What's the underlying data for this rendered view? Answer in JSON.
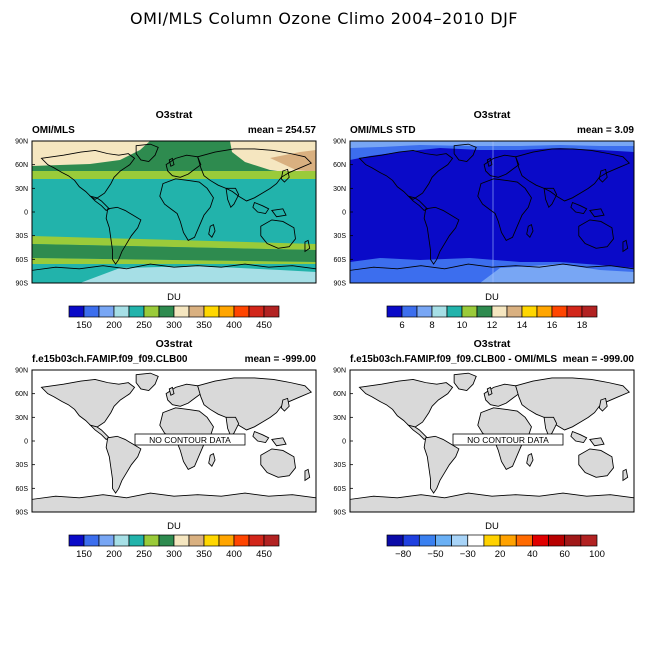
{
  "figure": {
    "title": "OMI/MLS Column Ozone Climo 2004–2010 DJF"
  },
  "land_color": "#d9d9d9",
  "lat_labels": [
    "90N",
    "60N",
    "30N",
    "0",
    "30S",
    "60S",
    "90S"
  ],
  "panels": [
    {
      "id": "p1",
      "center_title": "O3strat",
      "left_title": "OMI/MLS",
      "right_title": "mean = 254.57",
      "colorbar_title": "DU",
      "colorbar_colors": [
        "#0a0ac8",
        "#3c6eee",
        "#78a6f4",
        "#a6dfe6",
        "#22b3ab",
        "#9acb3a",
        "#2e8b4f",
        "#f5e6c0",
        "#d9b080",
        "#ffd700",
        "#ffa500",
        "#ff4500",
        "#d2261a",
        "#b22222"
      ],
      "colorbar_labels": [
        "150",
        "200",
        "250",
        "300",
        "350",
        "400",
        "450"
      ],
      "no_data": ""
    },
    {
      "id": "p2",
      "center_title": "O3strat",
      "left_title": "OMI/MLS STD",
      "right_title": "mean =   3.09",
      "colorbar_title": "DU",
      "colorbar_colors": [
        "#0a0ac8",
        "#3c6eee",
        "#78a6f4",
        "#a6dfe6",
        "#22b3ab",
        "#9acb3a",
        "#2e8b4f",
        "#f5e6c0",
        "#d9b080",
        "#ffd700",
        "#ffa500",
        "#ff4500",
        "#d2261a",
        "#b22222"
      ],
      "colorbar_labels": [
        "6",
        "8",
        "10",
        "12",
        "14",
        "16",
        "18"
      ],
      "no_data": ""
    },
    {
      "id": "p3",
      "center_title": "O3strat",
      "left_title": "f.e15b03ch.FAMIP.f09_f09.CLB00",
      "right_title": "mean = -999.00",
      "colorbar_title": "DU",
      "colorbar_colors": [
        "#0a0ac8",
        "#3c6eee",
        "#78a6f4",
        "#a6dfe6",
        "#22b3ab",
        "#9acb3a",
        "#2e8b4f",
        "#f5e6c0",
        "#d9b080",
        "#ffd700",
        "#ffa500",
        "#ff4500",
        "#d2261a",
        "#b22222"
      ],
      "colorbar_labels": [
        "150",
        "200",
        "250",
        "300",
        "350",
        "400",
        "450"
      ],
      "no_data": "NO CONTOUR DATA"
    },
    {
      "id": "p4",
      "center_title": "O3strat",
      "left_title": "f.e15b03ch.FAMIP.f09_f09.CLB00 - OMI/MLS",
      "right_title": "mean = -999.00",
      "colorbar_title": "DU",
      "colorbar_colors": [
        "#0b0ba8",
        "#1f40e0",
        "#3a80f0",
        "#6ab0f5",
        "#a8d4f8",
        "#ffffff",
        "#ffd200",
        "#ffa200",
        "#ff6a00",
        "#e00000",
        "#b80000",
        "#a01818",
        "#b22222"
      ],
      "colorbar_labels": [
        "−80",
        "−50",
        "−30",
        "20",
        "40",
        "60",
        "100"
      ],
      "no_data": "NO CONTOUR DATA"
    }
  ]
}
